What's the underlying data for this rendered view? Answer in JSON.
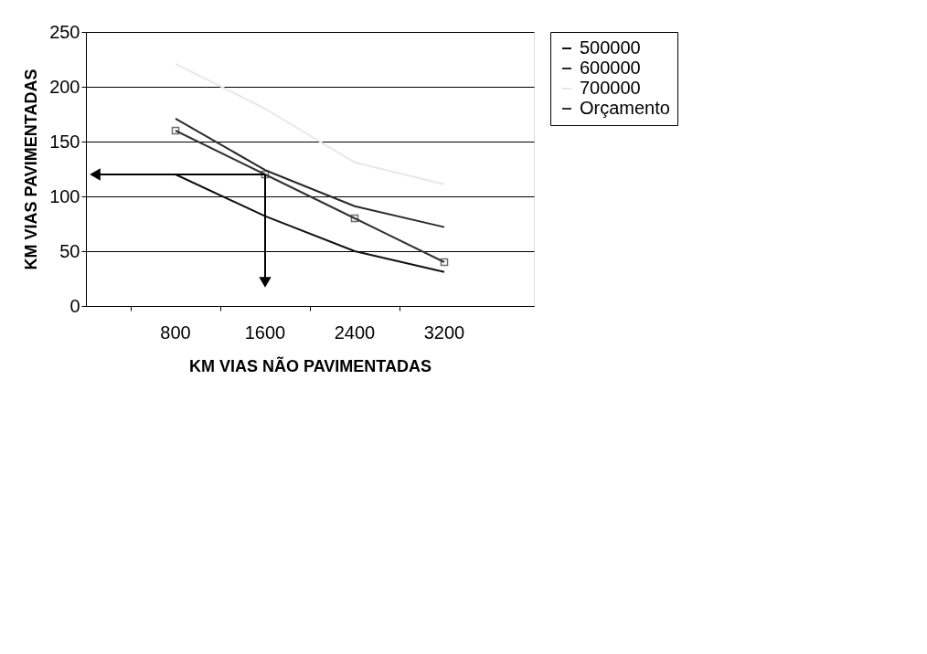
{
  "chart_data": {
    "type": "line",
    "xlabel": "KM VIAS NÃO PAVIMENTADAS",
    "ylabel": "KM VIAS PAVIMENTADAS",
    "categories": [
      "800",
      "1600",
      "2400",
      "3200"
    ],
    "series": [
      {
        "name": "500000",
        "color": "#111111",
        "values": [
          120,
          82,
          50,
          31
        ]
      },
      {
        "name": "600000",
        "color": "#2a2a2a",
        "values": [
          171,
          124,
          91,
          72
        ]
      },
      {
        "name": "700000",
        "color": "#e8e8e8",
        "values": [
          221,
          180,
          131,
          111
        ]
      },
      {
        "name": "Orçamento",
        "color": "#333333",
        "values": [
          160,
          120,
          80,
          40
        ],
        "marker": "square"
      }
    ],
    "ylim": [
      0,
      250
    ],
    "yticks": [
      0,
      50,
      100,
      150,
      200,
      250
    ],
    "grid": "y",
    "legend": "right",
    "marker": "none",
    "line_style": "solid"
  }
}
